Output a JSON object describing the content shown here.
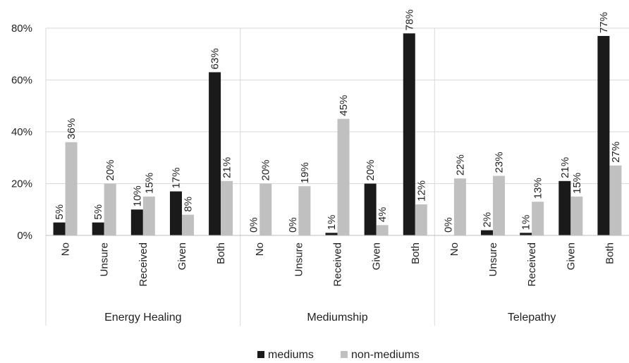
{
  "chart_data": {
    "type": "bar",
    "groups": [
      {
        "name": "Energy Healing",
        "categories": [
          "No",
          "Unsure",
          "Received",
          "Given",
          "Both"
        ]
      },
      {
        "name": "Mediumship",
        "categories": [
          "No",
          "Unsure",
          "Received",
          "Given",
          "Both"
        ]
      },
      {
        "name": "Telepathy",
        "categories": [
          "No",
          "Unsure",
          "Received",
          "Given",
          "Both"
        ]
      }
    ],
    "series": [
      {
        "name": "mediums",
        "color": "#1a1a1a",
        "values": [
          5,
          5,
          10,
          17,
          63,
          0,
          0,
          1,
          20,
          78,
          0,
          2,
          1,
          21,
          77
        ],
        "labels": [
          "5%",
          "5%",
          "10%",
          "17%",
          "63%",
          "0%",
          "0%",
          "1%",
          "20%",
          "78%",
          "0%",
          "2%",
          "1%",
          "21%",
          "77%"
        ]
      },
      {
        "name": "non-mediums",
        "color": "#c0c0c0",
        "values": [
          36,
          20,
          15,
          8,
          21,
          20,
          19,
          45,
          4,
          12,
          22,
          23,
          13,
          15,
          27
        ],
        "labels": [
          "36%",
          "20%",
          "15%",
          "8%",
          "21%",
          "20%",
          "19%",
          "45%",
          "4%",
          "12%",
          "22%",
          "23%",
          "13%",
          "15%",
          "27%"
        ]
      }
    ],
    "ylim": [
      0,
      80
    ],
    "yticks": [
      0,
      20,
      40,
      60,
      80
    ],
    "ytick_labels": [
      "0%",
      "20%",
      "40%",
      "60%",
      "80%"
    ],
    "grid": true,
    "legend": "bottom",
    "title": "",
    "xlabel": "",
    "ylabel": ""
  }
}
